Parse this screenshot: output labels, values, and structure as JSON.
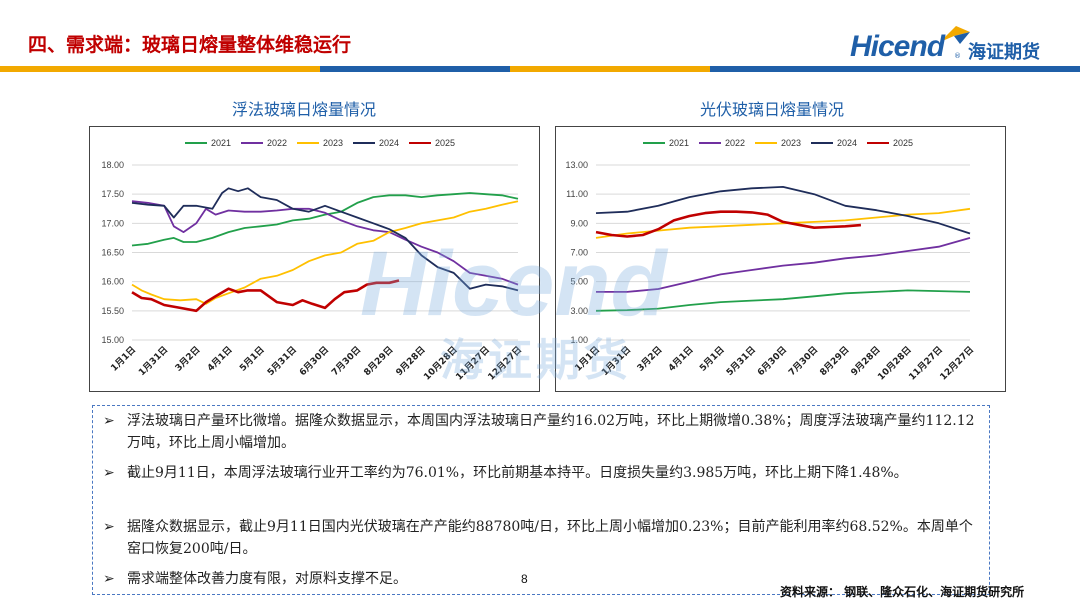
{
  "header": {
    "title": "四、需求端：玻璃日熔量整体维稳运行",
    "logo_text": "Hicend",
    "logo_cn": "海证期货",
    "logo_reg": "®",
    "bar_colors": [
      "#f2a900",
      "#1f5fa8",
      "#f2a900",
      "#1f5fa8"
    ]
  },
  "watermark": {
    "text": "Hicend",
    "cn": "海证期货"
  },
  "chart_data": [
    {
      "type": "line",
      "title": "浮法玻璃日熔量情况",
      "categories": [
        "1月1日",
        "1月31日",
        "3月2日",
        "4月1日",
        "5月1日",
        "5月31日",
        "6月30日",
        "7月30日",
        "8月29日",
        "9月28日",
        "10月28日",
        "11月27日",
        "12月27日"
      ],
      "ylim": [
        15.0,
        18.0
      ],
      "yticks": [
        "15.00",
        "15.50",
        "16.00",
        "16.50",
        "17.00",
        "17.50",
        "18.00"
      ],
      "grid": true,
      "legend": "top",
      "series": [
        {
          "name": "2021",
          "color": "#22a04b",
          "x": [
            0,
            0.5,
            1,
            1.3,
            1.6,
            2,
            2.5,
            3,
            3.5,
            4,
            4.5,
            5,
            5.5,
            6,
            6.5,
            7,
            7.5,
            8,
            8.5,
            9,
            9.5,
            10,
            10.5,
            11,
            11.5,
            12
          ],
          "values": [
            16.62,
            16.65,
            16.72,
            16.75,
            16.68,
            16.68,
            16.75,
            16.85,
            16.92,
            16.95,
            16.98,
            17.05,
            17.08,
            17.15,
            17.2,
            17.35,
            17.45,
            17.48,
            17.48,
            17.45,
            17.48,
            17.5,
            17.52,
            17.5,
            17.48,
            17.42
          ]
        },
        {
          "name": "2022",
          "color": "#7030a0",
          "x": [
            0,
            0.5,
            1,
            1.3,
            1.6,
            2,
            2.3,
            2.6,
            3,
            3.5,
            4,
            4.5,
            5,
            5.5,
            6,
            6.5,
            7,
            7.5,
            8,
            8.5,
            9,
            9.5,
            10,
            10.5,
            11,
            11.5,
            12
          ],
          "values": [
            17.38,
            17.35,
            17.3,
            16.95,
            16.85,
            17.0,
            17.25,
            17.15,
            17.22,
            17.2,
            17.2,
            17.22,
            17.25,
            17.25,
            17.18,
            17.05,
            16.95,
            16.88,
            16.85,
            16.72,
            16.6,
            16.5,
            16.35,
            16.15,
            16.1,
            16.05,
            15.95
          ]
        },
        {
          "name": "2023",
          "color": "#ffc000",
          "x": [
            0,
            0.3,
            0.6,
            1,
            1.5,
            2,
            2.3,
            2.6,
            3,
            3.5,
            4,
            4.5,
            5,
            5.5,
            6,
            6.5,
            7,
            7.5,
            8,
            8.5,
            9,
            9.5,
            10,
            10.5,
            11,
            11.5,
            12
          ],
          "values": [
            15.95,
            15.85,
            15.78,
            15.7,
            15.68,
            15.7,
            15.62,
            15.72,
            15.8,
            15.9,
            16.05,
            16.1,
            16.2,
            16.35,
            16.45,
            16.5,
            16.65,
            16.7,
            16.85,
            16.92,
            17.0,
            17.05,
            17.1,
            17.2,
            17.25,
            17.32,
            17.38
          ]
        },
        {
          "name": "2024",
          "color": "#1f2d5a",
          "x": [
            0,
            0.5,
            1,
            1.3,
            1.6,
            2,
            2.5,
            2.8,
            3,
            3.3,
            3.6,
            4,
            4.5,
            5,
            5.5,
            6,
            6.5,
            7,
            7.5,
            8,
            8.5,
            9,
            9.5,
            10,
            10.5,
            11,
            11.5,
            12
          ],
          "values": [
            17.35,
            17.32,
            17.3,
            17.1,
            17.3,
            17.3,
            17.25,
            17.52,
            17.6,
            17.55,
            17.6,
            17.45,
            17.4,
            17.25,
            17.2,
            17.3,
            17.2,
            17.1,
            17.0,
            16.9,
            16.75,
            16.45,
            16.25,
            16.15,
            15.88,
            15.95,
            15.92,
            15.85
          ]
        },
        {
          "name": "2025",
          "color": "#c00000",
          "x": [
            0,
            0.3,
            0.6,
            1,
            1.5,
            2,
            2.3,
            2.6,
            3,
            3.3,
            3.6,
            4,
            4.5,
            5,
            5.3,
            5.6,
            6,
            6.3,
            6.6,
            7,
            7.3,
            7.6,
            8,
            8.3
          ],
          "values": [
            15.82,
            15.72,
            15.7,
            15.6,
            15.55,
            15.5,
            15.65,
            15.75,
            15.88,
            15.82,
            15.85,
            15.85,
            15.65,
            15.6,
            15.68,
            15.62,
            15.55,
            15.7,
            15.82,
            15.85,
            15.95,
            15.98,
            15.98,
            16.02
          ]
        }
      ]
    },
    {
      "type": "line",
      "title": "光伏玻璃日熔量情况",
      "categories": [
        "1月1日",
        "1月31日",
        "3月2日",
        "4月1日",
        "5月1日",
        "5月31日",
        "6月30日",
        "7月30日",
        "8月29日",
        "9月28日",
        "10月28日",
        "11月27日",
        "12月27日"
      ],
      "ylim": [
        1.0,
        13.0
      ],
      "yticks": [
        "1.00",
        "3.00",
        "5.00",
        "7.00",
        "9.00",
        "11.00",
        "13.00"
      ],
      "grid": true,
      "legend": "top",
      "series": [
        {
          "name": "2021",
          "color": "#22a04b",
          "x": [
            0,
            1,
            2,
            3,
            4,
            5,
            6,
            7,
            8,
            9,
            10,
            11,
            12
          ],
          "values": [
            3.0,
            3.05,
            3.15,
            3.4,
            3.6,
            3.7,
            3.8,
            4.0,
            4.2,
            4.3,
            4.4,
            4.35,
            4.3
          ]
        },
        {
          "name": "2022",
          "color": "#7030a0",
          "x": [
            0,
            1,
            2,
            3,
            4,
            5,
            6,
            7,
            8,
            9,
            10,
            11,
            12
          ],
          "values": [
            4.3,
            4.3,
            4.5,
            5.0,
            5.5,
            5.8,
            6.1,
            6.3,
            6.6,
            6.8,
            7.1,
            7.4,
            8.0
          ]
        },
        {
          "name": "2023",
          "color": "#ffc000",
          "x": [
            0,
            1,
            2,
            3,
            4,
            5,
            6,
            7,
            8,
            9,
            10,
            11,
            12
          ],
          "values": [
            8.0,
            8.3,
            8.5,
            8.7,
            8.8,
            8.9,
            9.0,
            9.1,
            9.2,
            9.4,
            9.6,
            9.7,
            10.0
          ]
        },
        {
          "name": "2024",
          "color": "#1f2d5a",
          "x": [
            0,
            1,
            2,
            3,
            4,
            5,
            6,
            7,
            8,
            9,
            10,
            11,
            12
          ],
          "values": [
            9.7,
            9.8,
            10.2,
            10.8,
            11.2,
            11.4,
            11.5,
            11.0,
            10.2,
            9.9,
            9.5,
            9.0,
            8.3
          ]
        },
        {
          "name": "2025",
          "color": "#c00000",
          "x": [
            0,
            0.5,
            1,
            1.5,
            2,
            2.5,
            3,
            3.5,
            4,
            4.5,
            5,
            5.5,
            6,
            6.5,
            7,
            7.5,
            8,
            8.5
          ],
          "values": [
            8.4,
            8.2,
            8.1,
            8.2,
            8.6,
            9.2,
            9.5,
            9.7,
            9.8,
            9.8,
            9.75,
            9.6,
            9.1,
            8.9,
            8.7,
            8.75,
            8.8,
            8.88
          ]
        }
      ]
    }
  ],
  "notes": [
    "浮法玻璃日产量环比微增。据隆众数据显示，本周国内浮法玻璃日产量约16.02万吨，环比上期微增0.38%；周度浮法玻璃产量约112.12万吨，环比上周小幅增加。",
    "截止9月11日，本周浮法玻璃行业开工率约为76.01%，环比前期基本持平。日度损失量约3.985万吨，环比上期下降1.48%。",
    "据隆众数据显示，截止9月11日国内光伏玻璃在产产能约88780吨/日，环比上周小幅增加0.23%；目前产能利用率约68.52%。本周单个窑口恢复200吨/日。",
    "需求端整体改善力度有限，对原料支撑不足。"
  ],
  "bullet_glyph": "➢",
  "page_number": "8",
  "source": "资料来源： 钢联、隆众石化、海证期货研究所"
}
